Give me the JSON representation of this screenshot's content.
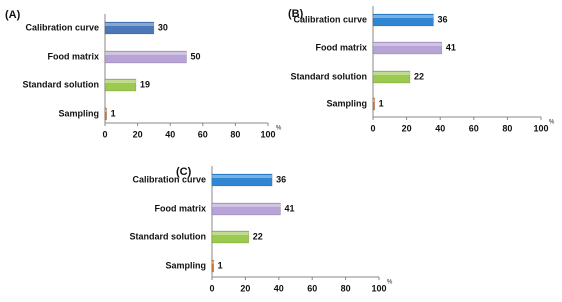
{
  "chart_data": [
    {
      "type": "bar",
      "panel_label": "(A)",
      "categories": [
        "Calibration curve",
        "Food matrix",
        "Standard solution",
        "Sampling"
      ],
      "values": [
        30,
        50,
        19,
        1
      ],
      "colors": [
        "#4a78b8",
        "#b7a3d5",
        "#9cc94f",
        "#d9793a"
      ],
      "xlim": [
        0,
        100
      ],
      "xticks": [
        0,
        20,
        40,
        60,
        80,
        100
      ],
      "x_unit": "%"
    },
    {
      "type": "bar",
      "panel_label": "(B)",
      "categories": [
        "Calibration curve",
        "Food matrix",
        "Standard solution",
        "Sampling"
      ],
      "values": [
        36,
        41,
        22,
        1
      ],
      "colors": [
        "#2f86d2",
        "#b7a3d5",
        "#9cc94f",
        "#d9793a"
      ],
      "xlim": [
        0,
        100
      ],
      "xticks": [
        0,
        20,
        40,
        60,
        80,
        100
      ],
      "x_unit": "%"
    },
    {
      "type": "bar",
      "panel_label": "(C)",
      "categories": [
        "Calibration curve",
        "Food matrix",
        "Standard solution",
        "Sampling"
      ],
      "values": [
        36,
        41,
        22,
        1
      ],
      "colors": [
        "#2f86d2",
        "#b7a3d5",
        "#9cc94f",
        "#d9793a"
      ],
      "xlim": [
        0,
        100
      ],
      "xticks": [
        0,
        20,
        40,
        60,
        80,
        100
      ],
      "x_unit": "%"
    }
  ]
}
